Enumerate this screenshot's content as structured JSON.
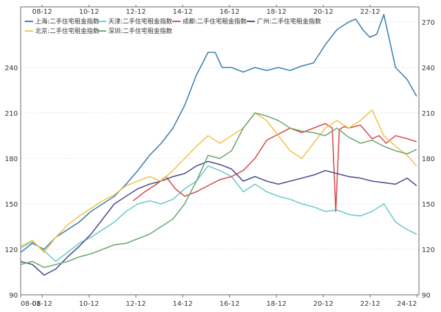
{
  "chart_data": {
    "type": "line",
    "title": "",
    "xlabel": "",
    "ylabel": "",
    "bottom_ticks": [
      "08-01",
      "08-12",
      "10-12",
      "12-12",
      "14-12",
      "16-12",
      "18-12",
      "20-12",
      "22-12",
      "24-12"
    ],
    "top_ticks": [
      "08-12",
      "10-12",
      "12-12",
      "14-12",
      "16-12",
      "18-12",
      "20-12",
      "22-12"
    ],
    "left_ticks": [
      "90",
      "120",
      "150",
      "180",
      "210",
      "240"
    ],
    "right_ticks": [
      "90",
      "120",
      "150",
      "180",
      "210",
      "240",
      "270"
    ],
    "ylim": [
      90,
      280
    ],
    "xlim": [
      2008.0,
      2025.0
    ],
    "legend_position": "top-left",
    "grid": true,
    "series": [
      {
        "name": "上海:二手住宅租金指数",
        "color": "#3b7fb0",
        "x": [
          2008.0,
          2008.5,
          2009.0,
          2009.5,
          2010.0,
          2010.5,
          2011.0,
          2011.5,
          2012.0,
          2012.5,
          2013.0,
          2013.5,
          2014.0,
          2014.5,
          2015.0,
          2015.5,
          2016.0,
          2016.3,
          2016.6,
          2017.0,
          2017.5,
          2018.0,
          2018.5,
          2019.0,
          2019.5,
          2020.0,
          2020.5,
          2021.0,
          2021.5,
          2022.0,
          2022.3,
          2022.6,
          2022.9,
          2023.2,
          2023.5,
          2024.0,
          2024.5,
          2024.9
        ],
        "values": [
          118,
          124,
          120,
          128,
          133,
          138,
          145,
          150,
          155,
          163,
          172,
          182,
          190,
          200,
          215,
          235,
          250,
          250,
          240,
          240,
          237,
          240,
          238,
          240,
          238,
          241,
          243,
          255,
          265,
          270,
          272,
          265,
          260,
          262,
          275,
          240,
          232,
          221
        ]
      },
      {
        "name": "天津:二手住宅租金指数",
        "color": "#6ec9cc",
        "x": [
          2008.0,
          2008.5,
          2009.0,
          2009.5,
          2010.0,
          2010.5,
          2011.0,
          2011.5,
          2012.0,
          2012.5,
          2013.0,
          2013.5,
          2014.0,
          2014.5,
          2015.0,
          2015.5,
          2016.0,
          2016.5,
          2017.0,
          2017.5,
          2018.0,
          2018.5,
          2019.0,
          2019.5,
          2020.0,
          2020.5,
          2021.0,
          2021.5,
          2022.0,
          2022.5,
          2023.0,
          2023.5,
          2024.0,
          2024.5,
          2024.9
        ],
        "values": [
          121,
          125,
          119,
          112,
          118,
          124,
          128,
          133,
          138,
          145,
          150,
          152,
          150,
          153,
          160,
          165,
          175,
          172,
          168,
          158,
          163,
          158,
          155,
          153,
          150,
          148,
          145,
          146,
          143,
          142,
          145,
          150,
          138,
          133,
          130
        ]
      },
      {
        "name": "成都:二手住宅租金指数",
        "color": "#d94b4b",
        "x": [
          2012.8,
          2013.3,
          2013.8,
          2014.2,
          2014.6,
          2015.0,
          2015.5,
          2016.0,
          2016.5,
          2017.0,
          2017.5,
          2018.0,
          2018.5,
          2019.0,
          2019.5,
          2020.0,
          2020.5,
          2021.0,
          2021.3,
          2021.45,
          2021.6,
          2021.8,
          2022.0,
          2022.5,
          2023.0,
          2023.3,
          2023.6,
          2024.0,
          2024.5,
          2024.9
        ],
        "values": [
          152,
          158,
          163,
          168,
          160,
          155,
          158,
          162,
          166,
          168,
          172,
          180,
          192,
          196,
          200,
          197,
          200,
          203,
          200,
          145,
          199,
          201,
          200,
          202,
          193,
          195,
          190,
          195,
          193,
          191
        ]
      },
      {
        "name": "广州:二手住宅租金指数",
        "color": "#4b4b8f",
        "x": [
          2008.0,
          2008.5,
          2009.0,
          2009.5,
          2010.0,
          2010.5,
          2011.0,
          2011.5,
          2012.0,
          2012.5,
          2013.0,
          2013.5,
          2014.0,
          2014.5,
          2015.0,
          2015.5,
          2016.0,
          2016.5,
          2017.0,
          2017.5,
          2018.0,
          2018.5,
          2019.0,
          2019.5,
          2020.0,
          2020.5,
          2021.0,
          2021.5,
          2022.0,
          2022.5,
          2023.0,
          2023.5,
          2024.0,
          2024.5,
          2024.9
        ],
        "values": [
          112,
          110,
          103,
          107,
          115,
          122,
          130,
          140,
          150,
          155,
          160,
          163,
          165,
          168,
          170,
          175,
          178,
          176,
          173,
          165,
          168,
          165,
          163,
          165,
          167,
          169,
          172,
          170,
          168,
          167,
          165,
          164,
          163,
          167,
          162
        ]
      },
      {
        "name": "北京:二手住宅租金指数",
        "color": "#f2c24f",
        "x": [
          2008.0,
          2008.5,
          2009.0,
          2009.5,
          2010.0,
          2010.5,
          2011.0,
          2011.5,
          2012.0,
          2012.5,
          2013.0,
          2013.5,
          2014.0,
          2014.5,
          2015.0,
          2015.5,
          2016.0,
          2016.5,
          2017.0,
          2017.5,
          2018.0,
          2018.5,
          2019.0,
          2019.5,
          2020.0,
          2020.5,
          2021.0,
          2021.5,
          2022.0,
          2022.5,
          2023.0,
          2023.5,
          2024.0,
          2024.5,
          2024.9
        ],
        "values": [
          122,
          126,
          118,
          128,
          136,
          142,
          147,
          152,
          156,
          162,
          165,
          168,
          165,
          172,
          180,
          188,
          195,
          190,
          195,
          200,
          210,
          205,
          195,
          185,
          180,
          190,
          200,
          205,
          200,
          205,
          212,
          195,
          188,
          182,
          175
        ]
      },
      {
        "name": "深圳:二手住宅租金指数",
        "color": "#6aa86f",
        "x": [
          2008.0,
          2008.5,
          2009.0,
          2009.5,
          2010.0,
          2010.5,
          2011.0,
          2011.5,
          2012.0,
          2012.5,
          2013.0,
          2013.5,
          2014.0,
          2014.5,
          2015.0,
          2015.5,
          2016.0,
          2016.5,
          2017.0,
          2017.5,
          2018.0,
          2018.5,
          2019.0,
          2019.5,
          2020.0,
          2020.5,
          2021.0,
          2021.5,
          2022.0,
          2022.5,
          2023.0,
          2023.5,
          2024.0,
          2024.5,
          2024.9
        ],
        "values": [
          110,
          112,
          108,
          110,
          112,
          115,
          117,
          120,
          123,
          124,
          127,
          130,
          135,
          140,
          150,
          165,
          182,
          180,
          185,
          200,
          210,
          208,
          205,
          200,
          198,
          197,
          195,
          200,
          194,
          190,
          192,
          188,
          185,
          183,
          186
        ]
      }
    ]
  }
}
